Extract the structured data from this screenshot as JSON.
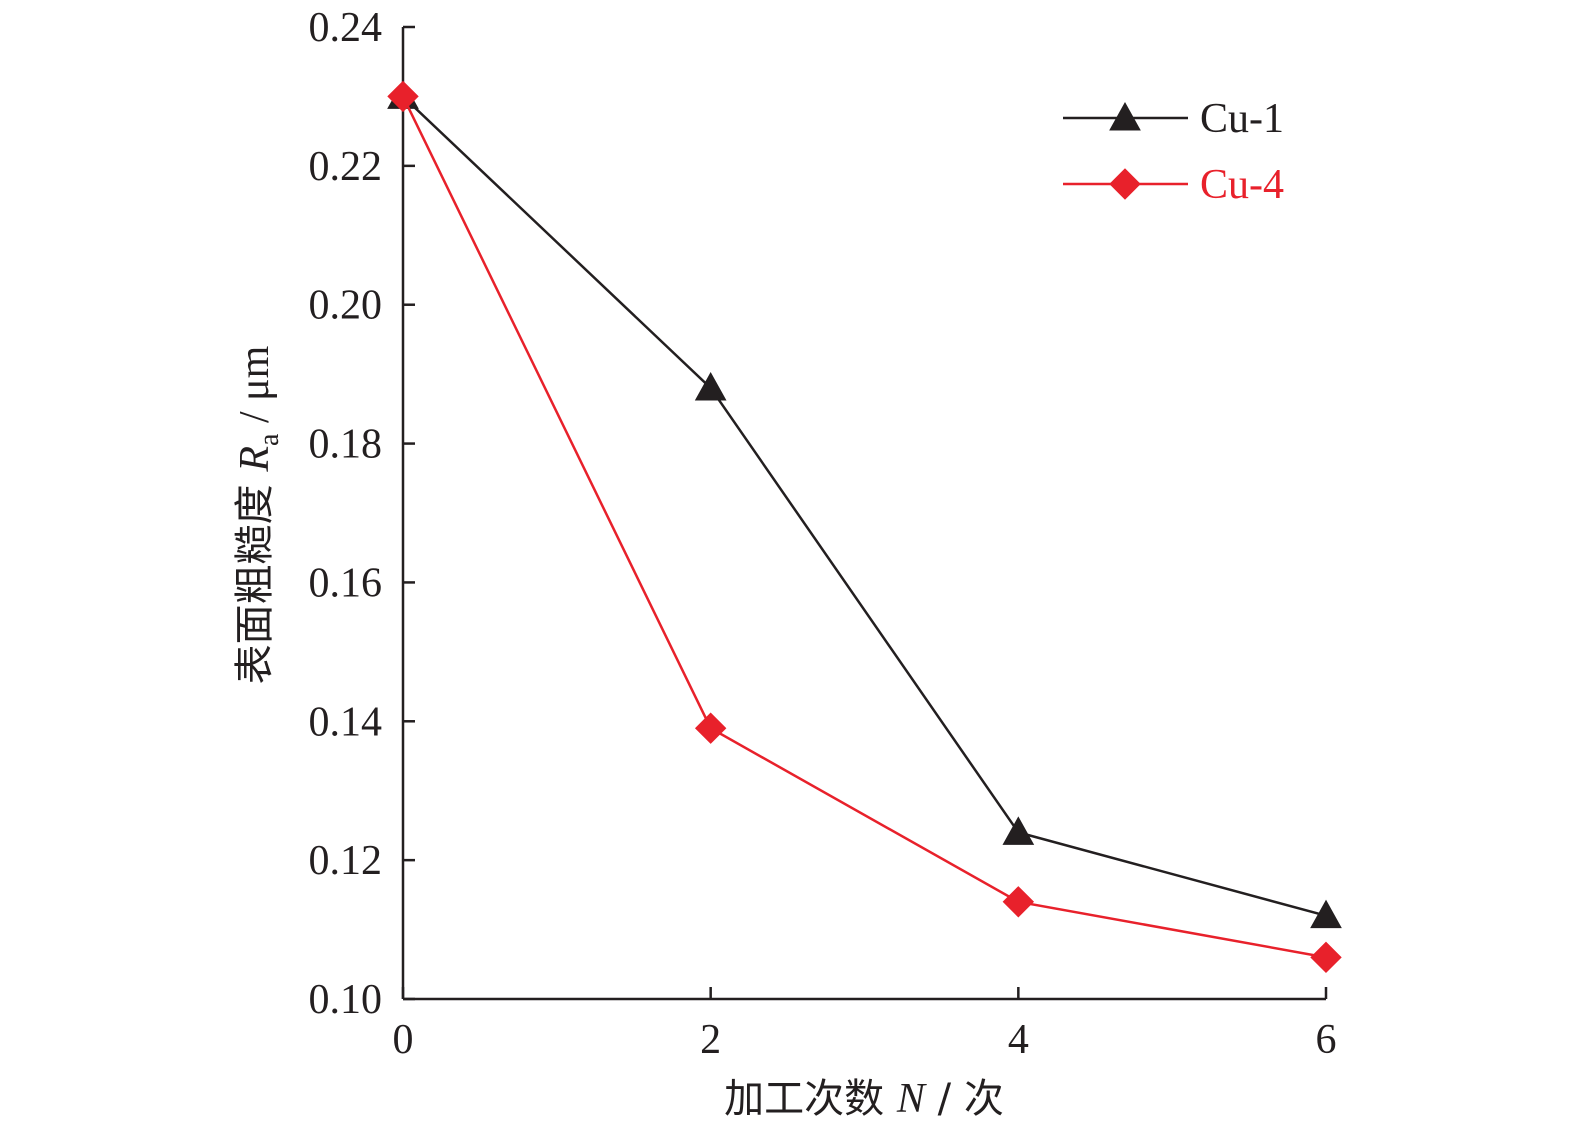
{
  "chart_data": {
    "type": "line",
    "xlabel": {
      "text": "加工次数 ",
      "var": "N",
      "unit": " / 次"
    },
    "ylabel": {
      "text": "表面粗糙度 ",
      "var": "R",
      "sub": "a",
      "unit": " / μm"
    },
    "xlim": [
      0,
      6
    ],
    "ylim": [
      0.1,
      0.24
    ],
    "xticks": [
      0,
      2,
      4,
      6
    ],
    "xtick_labels": [
      "0",
      "2",
      "4",
      "6"
    ],
    "yticks": [
      0.1,
      0.12,
      0.14,
      0.16,
      0.18,
      0.2,
      0.22,
      0.24
    ],
    "ytick_labels": [
      "0.10",
      "0.12",
      "0.14",
      "0.16",
      "0.18",
      "0.20",
      "0.22",
      "0.24"
    ],
    "grid": false,
    "legend_position": "top-right",
    "series": [
      {
        "name": "Cu-1",
        "color": "#231f20",
        "marker": "triangle",
        "x": [
          0,
          2,
          4,
          6
        ],
        "y": [
          0.23,
          0.188,
          0.124,
          0.112
        ]
      },
      {
        "name": "Cu-4",
        "color": "#e8212b",
        "marker": "diamond",
        "x": [
          0,
          2,
          4,
          6
        ],
        "y": [
          0.23,
          0.139,
          0.114,
          0.106
        ]
      }
    ]
  }
}
